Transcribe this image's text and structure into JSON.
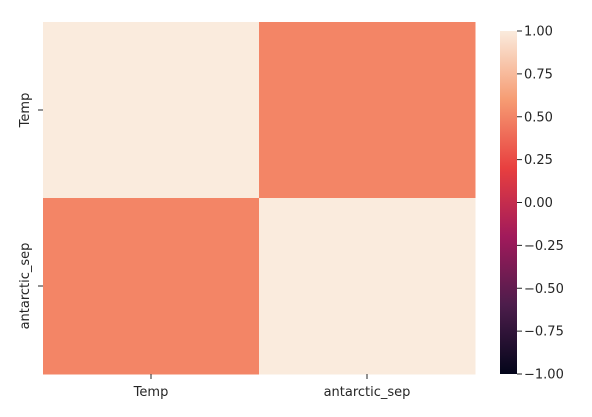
{
  "chart_data": {
    "type": "heatmap",
    "title": "",
    "xlabel": "",
    "ylabel": "",
    "x_categories": [
      "Temp",
      "antarctic_sep"
    ],
    "y_categories": [
      "Temp",
      "antarctic_sep"
    ],
    "values": [
      [
        1.0,
        0.5
      ],
      [
        0.5,
        1.0
      ]
    ],
    "colorbar": {
      "vmin": -1.0,
      "vmax": 1.0,
      "ticks": [
        1.0,
        0.75,
        0.5,
        0.25,
        0.0,
        -0.25,
        -0.5,
        -0.75,
        -1.0
      ],
      "tick_labels": [
        "1.00",
        "0.75",
        "0.50",
        "0.25",
        "0.00",
        "−0.25",
        "−0.50",
        "−0.75",
        "−1.00"
      ],
      "colormap": "rocket",
      "stops": [
        "#03051a",
        "#4c1d4b",
        "#a11a5b",
        "#e83f3f",
        "#f69c73",
        "#faebdd"
      ]
    }
  }
}
